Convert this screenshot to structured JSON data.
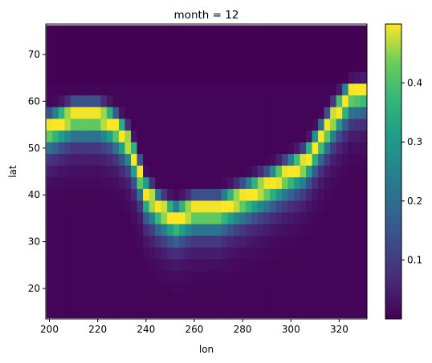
{
  "chart_data": {
    "type": "heatmap",
    "title": "month = 12",
    "xlabel": "lon",
    "ylabel": "lat",
    "xlim": [
      198.5,
      331.5
    ],
    "ylim": [
      13.5,
      76.5
    ],
    "xticks": [
      200,
      220,
      240,
      260,
      280,
      300,
      320
    ],
    "yticks": [
      20,
      30,
      40,
      50,
      60,
      70
    ],
    "colorbar": {
      "colormap": "viridis",
      "range": [
        0.0,
        0.5
      ],
      "ticks": [
        0.1,
        0.2,
        0.3,
        0.4
      ]
    },
    "grid_resolution_deg": 2.5,
    "x": [
      200,
      202.5,
      205,
      207.5,
      210,
      212.5,
      215,
      217.5,
      220,
      222.5,
      225,
      227.5,
      230,
      232.5,
      235,
      237.5,
      240,
      242.5,
      245,
      247.5,
      250,
      252.5,
      255,
      257.5,
      260,
      262.5,
      265,
      267.5,
      270,
      272.5,
      275,
      277.5,
      280,
      282.5,
      285,
      287.5,
      290,
      292.5,
      295,
      297.5,
      300,
      302.5,
      305,
      307.5,
      310,
      312.5,
      315,
      317.5,
      320,
      322.5,
      325,
      327.5,
      330
    ],
    "y": [
      75,
      72.5,
      70,
      67.5,
      65,
      62.5,
      60,
      57.5,
      55,
      52.5,
      50,
      47.5,
      45,
      42.5,
      40,
      37.5,
      35,
      32.5,
      30,
      27.5,
      25,
      22.5,
      20,
      17.5,
      15
    ],
    "ridge": [
      {
        "lon": 200,
        "lat": 55
      },
      {
        "lon": 210,
        "lat": 57.5
      },
      {
        "lon": 220,
        "lat": 57.5
      },
      {
        "lon": 226,
        "lat": 56
      },
      {
        "lon": 232,
        "lat": 52.5
      },
      {
        "lon": 236,
        "lat": 47.5
      },
      {
        "lon": 240,
        "lat": 41
      },
      {
        "lon": 245,
        "lat": 38
      },
      {
        "lon": 252,
        "lat": 35.5
      },
      {
        "lon": 260,
        "lat": 37.5
      },
      {
        "lon": 270,
        "lat": 37.5
      },
      {
        "lon": 280,
        "lat": 40
      },
      {
        "lon": 290,
        "lat": 42.5
      },
      {
        "lon": 298,
        "lat": 45
      },
      {
        "lon": 306,
        "lat": 47.5
      },
      {
        "lon": 312,
        "lat": 52.5
      },
      {
        "lon": 318,
        "lat": 57.5
      },
      {
        "lon": 325,
        "lat": 62.5
      },
      {
        "lon": 330,
        "lat": 63
      }
    ],
    "peak_value": 0.49
  }
}
